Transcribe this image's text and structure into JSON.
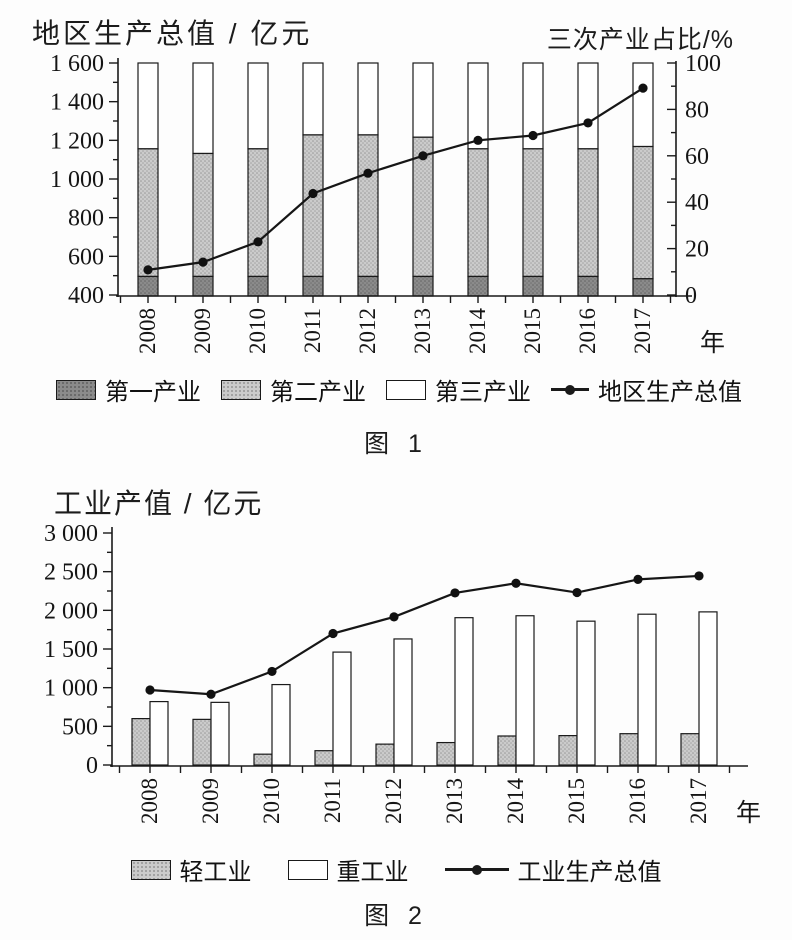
{
  "chart_data": [
    {
      "id": "figure-1",
      "type": "combo-stacked-100pct-bar-and-line",
      "caption": "图 1",
      "left_axis_title": "地区生产总值 / 亿元",
      "right_axis_title": "三次产业占比/%",
      "x_axis_unit": "年",
      "categories": [
        "2008",
        "2009",
        "2010",
        "2011",
        "2012",
        "2013",
        "2014",
        "2015",
        "2016",
        "2017"
      ],
      "left_axis": {
        "min": 400,
        "max": 1600,
        "major_step": 200,
        "minor_step": 100,
        "tick_labels_top_to_bottom": [
          "1 600",
          "1 400",
          "1 200",
          "1 000",
          "800",
          "600",
          "400"
        ]
      },
      "right_axis": {
        "min": 0,
        "max": 100,
        "major_step": 20,
        "minor_step": 10,
        "tick_labels_top_to_bottom": [
          "100",
          "80",
          "60",
          "40",
          "20",
          "0"
        ]
      },
      "bar_series_pct": [
        {
          "name": "第一产业",
          "swatch": "dark-gray",
          "values": [
            8,
            8,
            8,
            8,
            8,
            8,
            8,
            8,
            8,
            7
          ]
        },
        {
          "name": "第二产业",
          "swatch": "light-gray",
          "values": [
            55,
            53,
            55,
            61,
            61,
            60,
            55,
            55,
            55,
            57
          ]
        },
        {
          "name": "第三产业",
          "swatch": "white",
          "values": [
            37,
            39,
            37,
            31,
            31,
            32,
            37,
            37,
            37,
            36
          ]
        }
      ],
      "line_series": {
        "name": "地区生产总值",
        "axis": "left",
        "values": [
          530,
          570,
          675,
          925,
          1030,
          1120,
          1200,
          1225,
          1290,
          1470
        ]
      },
      "legend_note": "bars are 100%-stacked industry shares read on the right axis; the dotted line is regional GDP in 亿元 read on the left axis"
    },
    {
      "id": "figure-2",
      "type": "combo-grouped-bar-and-line",
      "caption": "图 2",
      "y_axis_title": "工业产值 / 亿元",
      "x_axis_unit": "年",
      "categories": [
        "2008",
        "2009",
        "2010",
        "2011",
        "2012",
        "2013",
        "2014",
        "2015",
        "2016",
        "2017"
      ],
      "y_axis": {
        "min": 0,
        "max": 3000,
        "major_step": 500,
        "minor_step": 250,
        "tick_labels_top_to_bottom": [
          "3 000",
          "2 500",
          "2 000",
          "1 500",
          "1 000",
          "500",
          "0"
        ]
      },
      "bar_series": [
        {
          "name": "轻工业",
          "swatch": "light-gray",
          "values": [
            600,
            590,
            140,
            185,
            270,
            290,
            375,
            380,
            405,
            405
          ]
        },
        {
          "name": "重工业",
          "swatch": "white",
          "values": [
            820,
            810,
            1040,
            1460,
            1630,
            1905,
            1930,
            1860,
            1950,
            1980
          ]
        }
      ],
      "line_series": {
        "name": "工业生产总值",
        "values": [
          970,
          915,
          1210,
          1700,
          1915,
          2225,
          2350,
          2230,
          2400,
          2445
        ]
      }
    }
  ]
}
